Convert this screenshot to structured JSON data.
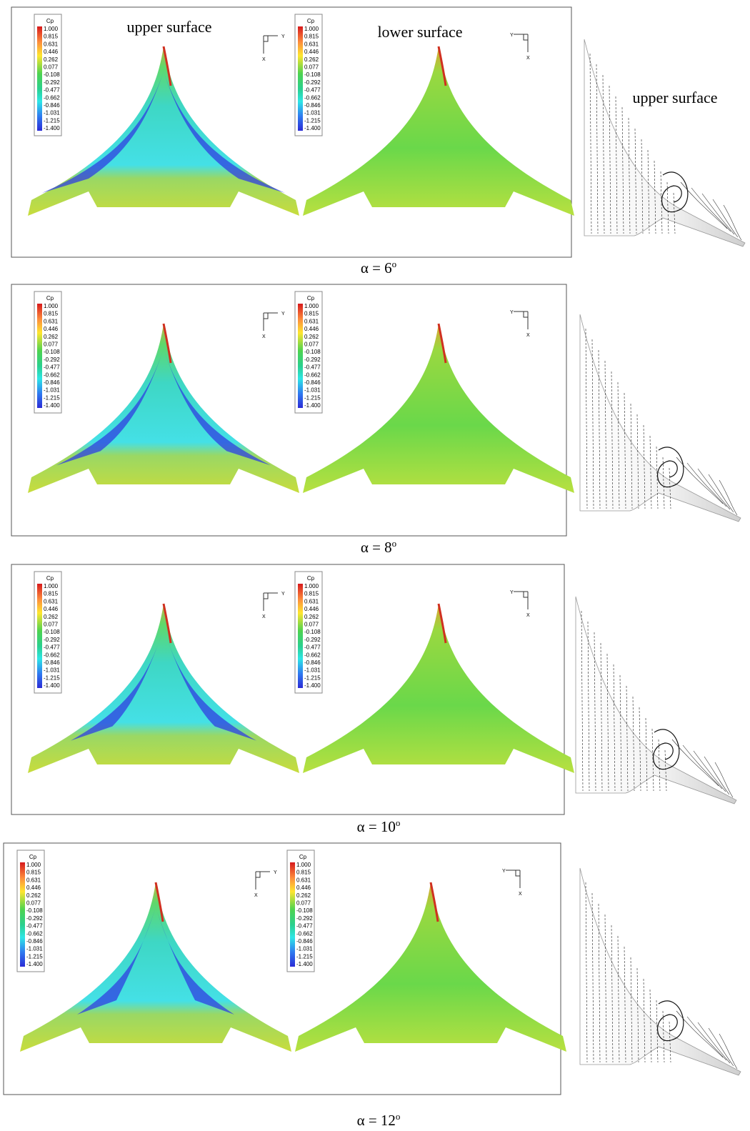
{
  "labels": {
    "upper_left": "upper surface",
    "lower": "lower surface",
    "upper_right": "upper surface"
  },
  "legend": {
    "title": "Cp",
    "levels": [
      "1.000",
      "0.815",
      "0.631",
      "0.446",
      "0.262",
      "0.077",
      "-0.108",
      "-0.292",
      "-0.477",
      "-0.662",
      "-0.846",
      "-1.031",
      "-1.215",
      "-1.400"
    ]
  },
  "triad": {
    "x": "X",
    "y": "Y"
  },
  "rows": [
    {
      "caption": {
        "text": "α = 6",
        "superscript": "o"
      }
    },
    {
      "caption": {
        "text": "α = 8",
        "superscript": "o"
      }
    },
    {
      "caption": {
        "text": "α = 10",
        "superscript": "o"
      }
    },
    {
      "caption": {
        "text": "α = 12",
        "superscript": "o"
      }
    }
  ]
}
